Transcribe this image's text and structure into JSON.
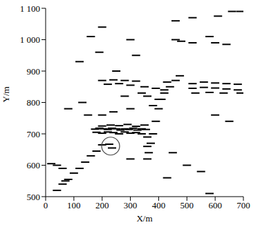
{
  "chart_data": {
    "type": "scatter",
    "x_label": "X/m",
    "y_label": "Y/m",
    "marker": "dash",
    "color": "#000000",
    "grid": false,
    "xlim": [
      0,
      700
    ],
    "xticks": [
      0,
      100,
      200,
      300,
      400,
      500,
      600,
      700
    ],
    "ylim": [
      500,
      1100
    ],
    "yticks": [
      500,
      600,
      700,
      800,
      900,
      {
        "value": 1000,
        "label": "1 000"
      },
      {
        "value": 1100,
        "label": "1 100"
      }
    ],
    "x": [
      40,
      60,
      70,
      80,
      100,
      120,
      140,
      160,
      180,
      200,
      380,
      400,
      420,
      440,
      460,
      475,
      365,
      372,
      380,
      390,
      400,
      410,
      420,
      430,
      360,
      360,
      360,
      175,
      190,
      205,
      220,
      235,
      250,
      265,
      280,
      295,
      310,
      325,
      340,
      355,
      180,
      200,
      220,
      240,
      260,
      280,
      300,
      320,
      340,
      200,
      230,
      260,
      290,
      320,
      350,
      200,
      240,
      280,
      320,
      220,
      260,
      300,
      350,
      390,
      520,
      560,
      600,
      640,
      680,
      520,
      560,
      600,
      640,
      680,
      530,
      580,
      630,
      690,
      460,
      520,
      610,
      660,
      690,
      460,
      480,
      520,
      580,
      600,
      640,
      20,
      40,
      60,
      80,
      130,
      150,
      120,
      160,
      200,
      190,
      300,
      250,
      320,
      300,
      430,
      450,
      500,
      550,
      580,
      600,
      650,
      200,
      240,
      300,
      340,
      280,
      360,
      225,
      235
    ],
    "y": [
      520,
      540,
      550,
      555,
      575,
      590,
      610,
      630,
      645,
      665,
      790,
      810,
      830,
      850,
      870,
      885,
      640,
      670,
      700,
      740,
      780,
      810,
      840,
      865,
      620,
      660,
      690,
      715,
      718,
      716,
      714,
      718,
      716,
      712,
      716,
      714,
      718,
      712,
      716,
      714,
      705,
      702,
      706,
      704,
      700,
      706,
      702,
      704,
      700,
      725,
      728,
      726,
      730,
      724,
      728,
      870,
      872,
      870,
      868,
      858,
      860,
      855,
      850,
      845,
      860,
      865,
      862,
      860,
      858,
      845,
      848,
      846,
      843,
      840,
      830,
      832,
      830,
      830,
      1060,
      1070,
      1075,
      1090,
      1090,
      1000,
      995,
      990,
      1010,
      990,
      985,
      605,
      600,
      590,
      780,
      800,
      760,
      930,
      1010,
      1040,
      960,
      1000,
      900,
      950,
      620,
      560,
      640,
      600,
      580,
      510,
      760,
      740,
      760,
      770,
      780,
      830,
      820,
      820,
      667,
      655
    ],
    "marked_point": {
      "x": 230,
      "y": 661
    }
  }
}
